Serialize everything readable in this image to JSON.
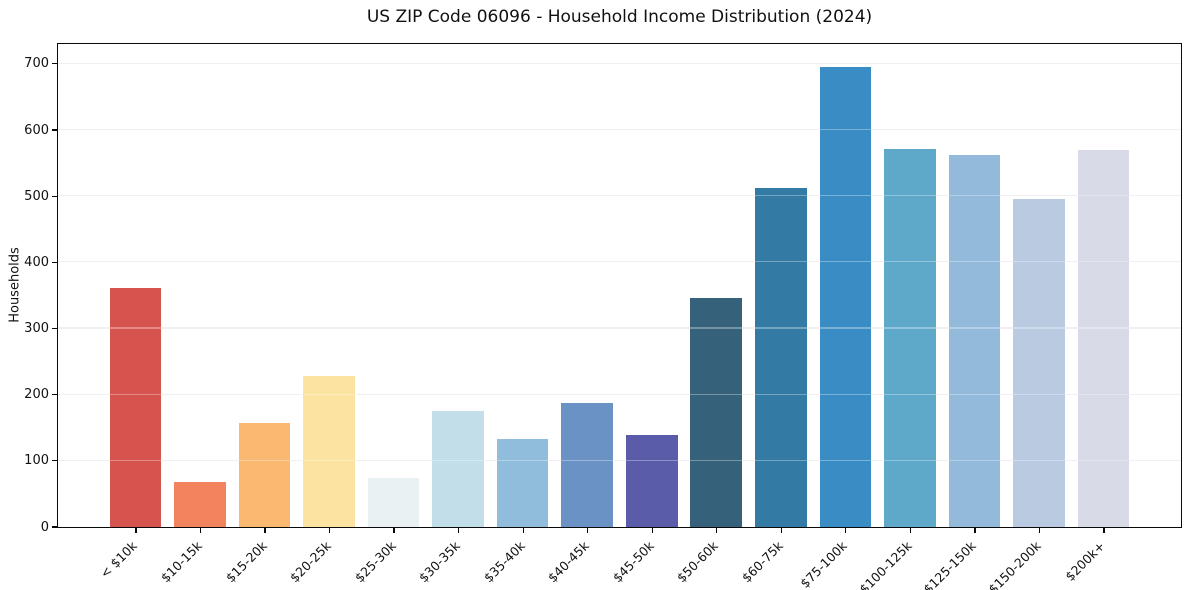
{
  "chart_data": {
    "type": "bar",
    "title": "US ZIP Code 06096 - Household Income Distribution (2024)",
    "xlabel": "",
    "ylabel": "Households",
    "categories": [
      "< $10k",
      "$10-15k",
      "$15-20k",
      "$20-25k",
      "$25-30k",
      "$30-35k",
      "$35-40k",
      "$40-45k",
      "$45-50k",
      "$50-60k",
      "$60-75k",
      "$75-100k",
      "$100-125k",
      "$125-150k",
      "$150-200k",
      "$200k+"
    ],
    "values": [
      360,
      68,
      157,
      227,
      74,
      174,
      132,
      186,
      138,
      345,
      512,
      694,
      571,
      562,
      495,
      569
    ],
    "bar_colors": [
      "#d6534e",
      "#f1835f",
      "#fab871",
      "#fde3a2",
      "#e9f1f3",
      "#c2dfe9",
      "#90bddc",
      "#6b92c4",
      "#5a5ca9",
      "#36617a",
      "#337ba4",
      "#3a8dc4",
      "#5ea8ca",
      "#93badb",
      "#b9cae1",
      "#d8dae7"
    ],
    "yticks": [
      0,
      100,
      200,
      300,
      400,
      500,
      600,
      700
    ],
    "ylim": [
      0,
      730
    ],
    "grid": "horizontal",
    "grid_color": "#e9e9ee",
    "xtick_rotation": 45,
    "legend": "none",
    "background_color": "#ffffff",
    "spine_color": "#0a0a0a"
  }
}
